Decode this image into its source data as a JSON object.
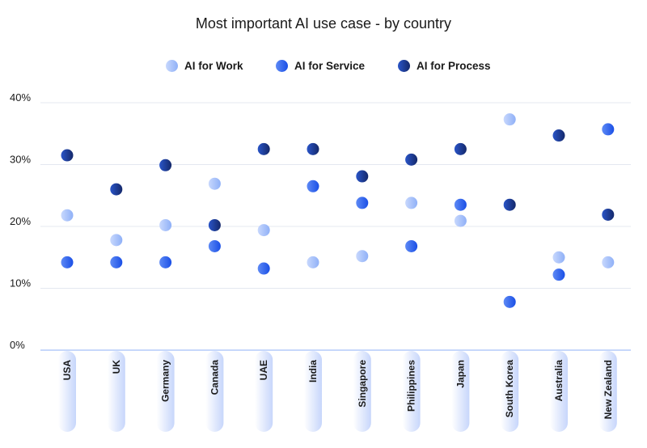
{
  "chart_data": {
    "type": "scatter",
    "title": "Most important AI use case - by country",
    "categories": [
      "USA",
      "UK",
      "Germany",
      "Canada",
      "UAE",
      "India",
      "Singapore",
      "Philippines",
      "Japan",
      "South Korea",
      "Australia",
      "New Zealand"
    ],
    "ylim": [
      0,
      40
    ],
    "yticks": [
      "0%",
      "10%",
      "20%",
      "30%",
      "40%"
    ],
    "grid": true,
    "legend_position": "top-center",
    "series": [
      {
        "name": "AI for Work",
        "color": "#8fb0f7",
        "values": [
          21.8,
          17.8,
          20.2,
          26.9,
          19.4,
          14.2,
          15.2,
          23.8,
          20.9,
          37.3,
          15.0,
          14.2
        ]
      },
      {
        "name": "AI for Service",
        "color": "#1a4fe6",
        "values": [
          14.2,
          14.2,
          14.2,
          16.8,
          13.2,
          26.5,
          23.8,
          16.8,
          23.5,
          7.8,
          12.2,
          35.7
        ]
      },
      {
        "name": "AI for Process",
        "color": "#152f7a",
        "values": [
          31.5,
          26.0,
          29.9,
          20.2,
          32.5,
          32.5,
          28.1,
          30.8,
          32.5,
          23.5,
          34.7,
          21.9
        ]
      }
    ]
  }
}
